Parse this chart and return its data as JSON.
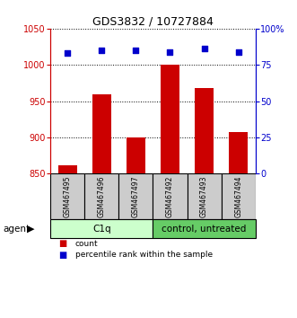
{
  "title": "GDS3832 / 10727884",
  "samples": [
    "GSM467495",
    "GSM467496",
    "GSM467497",
    "GSM467492",
    "GSM467493",
    "GSM467494"
  ],
  "counts": [
    862,
    960,
    900,
    1000,
    968,
    908
  ],
  "percentiles": [
    83,
    85,
    85,
    84,
    86,
    84
  ],
  "left_ylim": [
    850,
    1050
  ],
  "right_ylim": [
    0,
    100
  ],
  "left_yticks": [
    850,
    900,
    950,
    1000,
    1050
  ],
  "right_yticks": [
    0,
    25,
    50,
    75,
    100
  ],
  "right_yticklabels": [
    "0",
    "25",
    "50",
    "75",
    "100%"
  ],
  "bar_color": "#cc0000",
  "dot_color": "#0000cc",
  "left_axis_color": "#cc0000",
  "right_axis_color": "#0000cc",
  "group1_label": "C1q",
  "group2_label": "control, untreated",
  "group1_indices": [
    0,
    1,
    2
  ],
  "group2_indices": [
    3,
    4,
    5
  ],
  "group1_bg": "#ccffcc",
  "group2_bg": "#66cc66",
  "sample_bg": "#cccccc",
  "agent_label": "agent",
  "legend_count": "count",
  "legend_percentile": "percentile rank within the sample",
  "title_fontsize": 9,
  "tick_fontsize": 7,
  "label_fontsize": 7.5
}
